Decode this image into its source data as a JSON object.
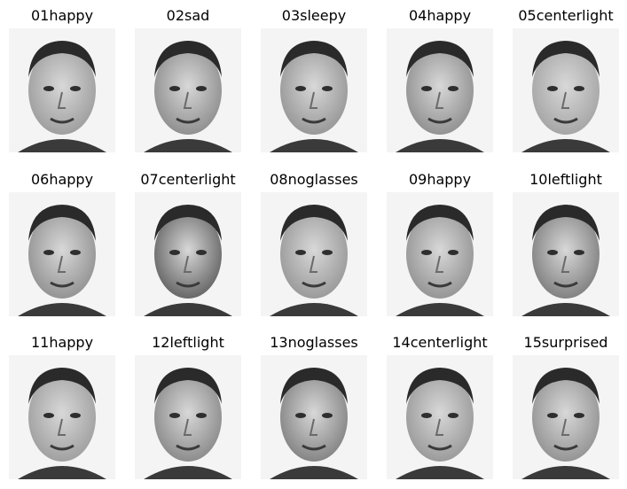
{
  "grid": {
    "images": [
      {
        "label": "01happy",
        "tone": "#9a9a9a"
      },
      {
        "label": "02sad",
        "tone": "#8a8a8a"
      },
      {
        "label": "03sleepy",
        "tone": "#939393"
      },
      {
        "label": "04happy",
        "tone": "#8c8c8c"
      },
      {
        "label": "05centerlight",
        "tone": "#a2a2a2"
      },
      {
        "label": "06happy",
        "tone": "#8e8e8e"
      },
      {
        "label": "07centerlight",
        "tone": "#5e5e5e"
      },
      {
        "label": "08noglasses",
        "tone": "#959595"
      },
      {
        "label": "09happy",
        "tone": "#909090"
      },
      {
        "label": "10leftlight",
        "tone": "#7a7a7a"
      },
      {
        "label": "11happy",
        "tone": "#9c9c9c"
      },
      {
        "label": "12leftlight",
        "tone": "#868686"
      },
      {
        "label": "13noglasses",
        "tone": "#7e7e7e"
      },
      {
        "label": "14centerlight",
        "tone": "#969696"
      },
      {
        "label": "15surprised",
        "tone": "#8f8f8f"
      }
    ]
  }
}
